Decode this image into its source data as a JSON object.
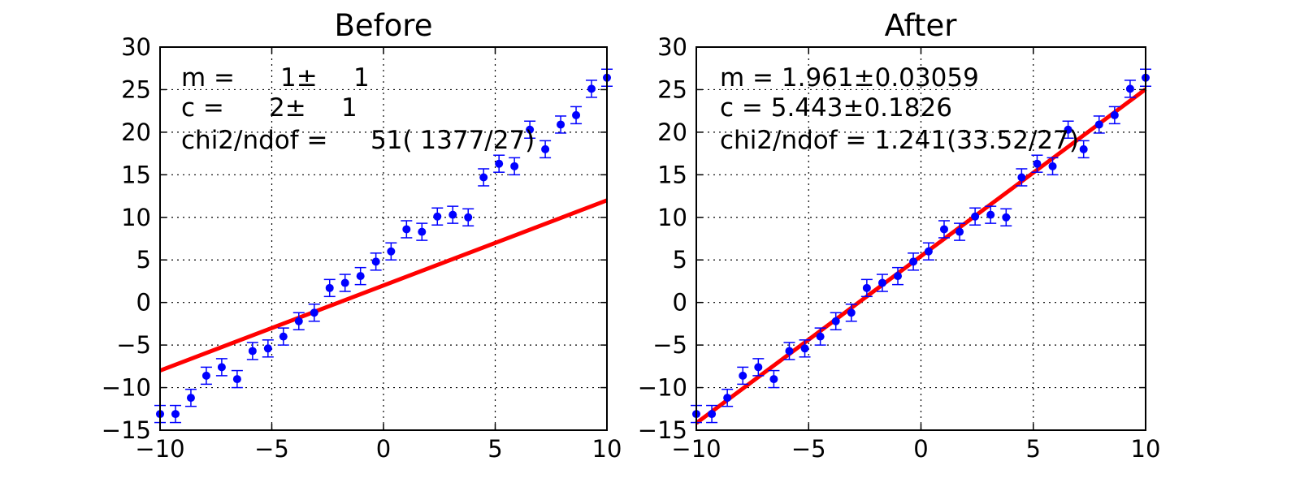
{
  "chart_data": [
    {
      "type": "scatter",
      "title": "Before",
      "xlim": [
        -10,
        10
      ],
      "ylim": [
        -15,
        30
      ],
      "xticks": [
        "−10",
        "−5",
        "0",
        "5",
        "10"
      ],
      "yticks": [
        "30",
        "25",
        "20",
        "15",
        "10",
        "5",
        "0",
        "−5",
        "−10",
        "−15"
      ],
      "grid": true,
      "series": [
        {
          "kind": "errorbar",
          "color": "#0000ff",
          "x": [
            -10.0,
            -9.31,
            -8.62,
            -7.93,
            -7.24,
            -6.55,
            -5.86,
            -5.17,
            -4.48,
            -3.79,
            -3.1,
            -2.41,
            -1.72,
            -1.03,
            -0.34,
            0.34,
            1.03,
            1.72,
            2.41,
            3.1,
            3.79,
            4.48,
            5.17,
            5.86,
            6.55,
            7.24,
            7.93,
            8.62,
            9.31,
            10.0
          ],
          "y": [
            -13.1,
            -13.1,
            -11.2,
            -8.6,
            -7.6,
            -9.0,
            -5.7,
            -5.4,
            -4.0,
            -2.2,
            -1.2,
            1.7,
            2.3,
            3.1,
            4.8,
            6.0,
            8.6,
            8.3,
            10.1,
            10.3,
            10.0,
            14.7,
            16.3,
            16.0,
            20.3,
            18.0,
            20.9,
            22.0,
            25.1,
            26.4
          ],
          "yerr": 1
        },
        {
          "kind": "line",
          "color": "#ff0000",
          "x": [
            -10,
            10
          ],
          "y": [
            -8,
            12
          ]
        }
      ],
      "annotations": [
        {
          "label": "m =",
          "value": "1±",
          "error": "1"
        },
        {
          "label": "c =",
          "value": "2±",
          "error": "1"
        },
        {
          "label": "chi2/ndof =",
          "value": "51( 1377/27)"
        }
      ]
    },
    {
      "type": "scatter",
      "title": "After",
      "xlim": [
        -10,
        10
      ],
      "ylim": [
        -15,
        30
      ],
      "xticks": [
        "−10",
        "−5",
        "0",
        "5",
        "10"
      ],
      "yticks": [
        "30",
        "25",
        "20",
        "15",
        "10",
        "5",
        "0",
        "−5",
        "−10",
        "−15"
      ],
      "grid": true,
      "series": [
        {
          "kind": "errorbar",
          "color": "#0000ff",
          "x": [
            -10.0,
            -9.31,
            -8.62,
            -7.93,
            -7.24,
            -6.55,
            -5.86,
            -5.17,
            -4.48,
            -3.79,
            -3.1,
            -2.41,
            -1.72,
            -1.03,
            -0.34,
            0.34,
            1.03,
            1.72,
            2.41,
            3.1,
            3.79,
            4.48,
            5.17,
            5.86,
            6.55,
            7.24,
            7.93,
            8.62,
            9.31,
            10.0
          ],
          "y": [
            -13.1,
            -13.1,
            -11.2,
            -8.6,
            -7.6,
            -9.0,
            -5.7,
            -5.4,
            -4.0,
            -2.2,
            -1.2,
            1.7,
            2.3,
            3.1,
            4.8,
            6.0,
            8.6,
            8.3,
            10.1,
            10.3,
            10.0,
            14.7,
            16.3,
            16.0,
            20.3,
            18.0,
            20.9,
            22.0,
            25.1,
            26.4
          ],
          "yerr": 1
        },
        {
          "kind": "line",
          "color": "#ff0000",
          "x": [
            -10,
            10
          ],
          "y": [
            -14.17,
            25.05
          ]
        }
      ],
      "annotations": [
        {
          "text": "m = 1.961±0.03059"
        },
        {
          "text": "c = 5.443±0.1826"
        },
        {
          "text": "chi2/ndof = 1.241(33.52/27)"
        }
      ]
    }
  ]
}
